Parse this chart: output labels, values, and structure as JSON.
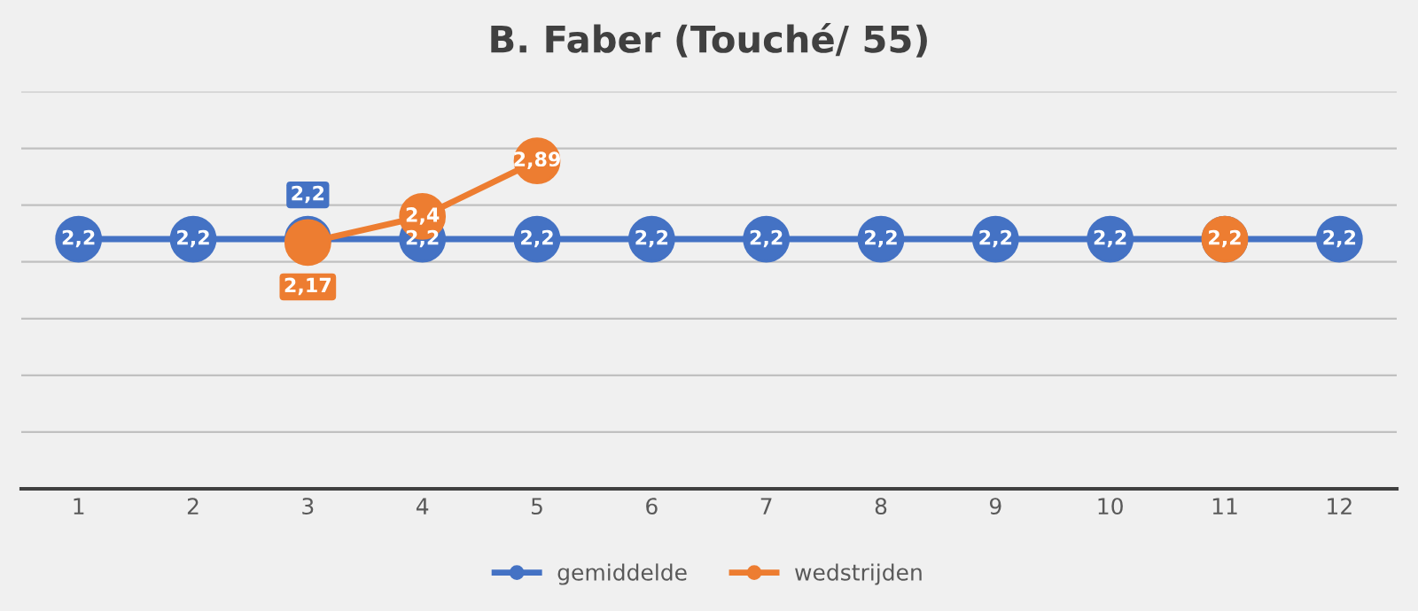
{
  "chart_data": {
    "type": "line",
    "title": "B. Faber (Touché/ 55)",
    "categories": [
      "1",
      "2",
      "3",
      "4",
      "5",
      "6",
      "7",
      "8",
      "9",
      "10",
      "11",
      "12"
    ],
    "series": [
      {
        "name": "gemiddelde",
        "color": "#4472c4",
        "values": [
          2.2,
          2.2,
          2.2,
          2.2,
          2.2,
          2.2,
          2.2,
          2.2,
          2.2,
          2.2,
          2.2,
          2.2
        ],
        "value_labels": [
          "2,2",
          "2,2",
          "2,2",
          "2,2",
          "2,2",
          "2,2",
          "2,2",
          "2,2",
          "2,2",
          "2,2",
          null,
          "2,2"
        ]
      },
      {
        "name": "wedstrijden",
        "color": "#ed7d31",
        "values": [
          null,
          null,
          2.17,
          2.4,
          2.89,
          null,
          null,
          null,
          null,
          null,
          2.2,
          null
        ],
        "value_labels": [
          null,
          null,
          "2,17",
          "2,4",
          "2,89",
          null,
          null,
          null,
          null,
          null,
          "2,2",
          null
        ]
      }
    ],
    "ylim": [
      0,
      3.5
    ],
    "yticks": [
      {
        "value": 0,
        "label": null
      },
      {
        "value": 0.5,
        "label": null
      },
      {
        "value": 1,
        "label": null
      },
      {
        "value": 1.5,
        "label": null
      },
      {
        "value": 2,
        "label": null
      },
      {
        "value": 2.5,
        "label": null
      },
      {
        "value": 3,
        "label": null
      },
      {
        "value": 3.5,
        "label": null
      }
    ],
    "tick_labels": "x",
    "grid": "y",
    "legend": "bottom",
    "marker": "circle",
    "line_style": "solid"
  }
}
